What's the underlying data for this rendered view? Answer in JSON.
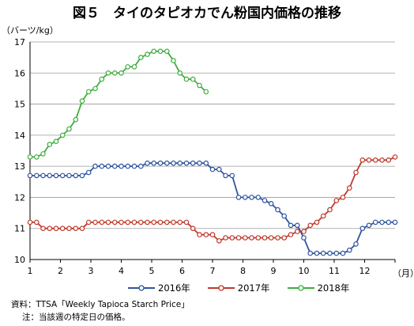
{
  "title": "図５　タイのタピオカでん粉国内価格の推移",
  "chart_data": {
    "type": "line",
    "ylabel": "（バーツ/kg）",
    "xlabel": "（月）",
    "ylim": [
      10,
      17
    ],
    "yticks": [
      10,
      11,
      12,
      13,
      14,
      15,
      16,
      17
    ],
    "xlim": [
      1,
      13
    ],
    "xticks": [
      "1",
      "2",
      "3",
      "4",
      "5",
      "6",
      "7",
      "8",
      "9",
      "10",
      "11",
      "12"
    ],
    "grid": true,
    "legend_position": "bottom",
    "series": [
      {
        "name": "2016年",
        "color": "#2e54a0",
        "values": [
          12.7,
          12.7,
          12.7,
          12.7,
          12.7,
          12.7,
          12.7,
          12.7,
          12.7,
          12.8,
          13.0,
          13.0,
          13.0,
          13.0,
          13.0,
          13.0,
          13.0,
          13.0,
          13.1,
          13.1,
          13.1,
          13.1,
          13.1,
          13.1,
          13.1,
          13.1,
          13.1,
          13.1,
          12.9,
          12.9,
          12.7,
          12.7,
          12.0,
          12.0,
          12.0,
          12.0,
          11.9,
          11.8,
          11.6,
          11.4,
          11.1,
          11.1,
          10.7,
          10.2,
          10.2,
          10.2,
          10.2,
          10.2,
          10.2,
          10.3,
          10.5,
          11.0,
          11.1,
          11.2,
          11.2,
          11.2,
          11.2
        ]
      },
      {
        "name": "2017年",
        "color": "#c0392b",
        "values": [
          11.2,
          11.2,
          11.0,
          11.0,
          11.0,
          11.0,
          11.0,
          11.0,
          11.0,
          11.2,
          11.2,
          11.2,
          11.2,
          11.2,
          11.2,
          11.2,
          11.2,
          11.2,
          11.2,
          11.2,
          11.2,
          11.2,
          11.2,
          11.2,
          11.2,
          11.0,
          10.8,
          10.8,
          10.8,
          10.6,
          10.7,
          10.7,
          10.7,
          10.7,
          10.7,
          10.7,
          10.7,
          10.7,
          10.7,
          10.7,
          10.8,
          10.9,
          10.9,
          11.1,
          11.2,
          11.4,
          11.6,
          11.9,
          12.0,
          12.3,
          12.8,
          13.2,
          13.2,
          13.2,
          13.2,
          13.2,
          13.3
        ]
      },
      {
        "name": "2018年",
        "color": "#3fae3f",
        "values": [
          13.3,
          13.3,
          13.4,
          13.7,
          13.8,
          14.0,
          14.2,
          14.5,
          15.1,
          15.4,
          15.5,
          15.8,
          16.0,
          16.0,
          16.0,
          16.2,
          16.2,
          16.5,
          16.6,
          16.7,
          16.7,
          16.7,
          16.4,
          16.0,
          15.8,
          15.8,
          15.6,
          15.4
        ]
      }
    ]
  },
  "footnotes": {
    "source": "資料：TTSA「Weekly Tapioca Starch Price」",
    "note": "注：当該週の特定日の価格。"
  }
}
